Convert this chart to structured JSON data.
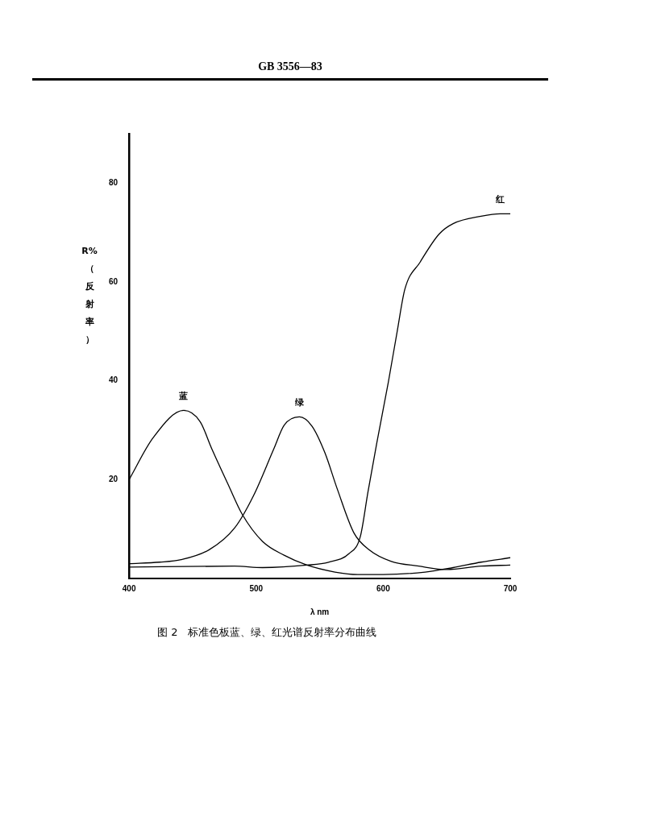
{
  "chart_data": {
    "type": "line",
    "title": "GB 3556—83",
    "xlabel": "λ nm",
    "ylabel": "R%（反射率）",
    "x": [
      400,
      419,
      443,
      456,
      465,
      478,
      489,
      505,
      522,
      540,
      562,
      580,
      600,
      633,
      655,
      677,
      700
    ],
    "series": [
      {
        "name": "蓝",
        "color": "#000000",
        "values": [
          20,
          28.5,
          34,
          31.7,
          26.3,
          19,
          13,
          7.5,
          4.7,
          2.7,
          1.3,
          0.8,
          0.8,
          1.3,
          2.2,
          3.3,
          4.2
        ]
      },
      {
        "name": "绿",
        "color": "#000000",
        "x": [
          400,
          424,
          441,
          463,
          483,
          498,
          514,
          522,
          534,
          544,
          554,
          564,
          577,
          589,
          606,
          628,
          650,
          677,
          700
        ],
        "values": [
          3,
          3.3,
          3.8,
          5.8,
          10.2,
          16.8,
          26.3,
          31,
          32.7,
          30.8,
          25.5,
          18,
          9.2,
          5.8,
          3.5,
          2.5,
          1.8,
          2.5,
          2.7
        ]
      },
      {
        "name": "红",
        "color": "#000000",
        "x": [
          400,
          483,
          505,
          540,
          557,
          573,
          582,
          588,
          595,
          604,
          611,
          617,
          629,
          644,
          655,
          677,
          692,
          700
        ],
        "values": [
          2.3,
          2.5,
          2.2,
          2.7,
          3.3,
          5,
          8.5,
          17.5,
          27.5,
          39.7,
          50,
          58.5,
          64,
          69.7,
          71.8,
          73.3,
          73.8,
          73.8
        ]
      }
    ],
    "xlim": [
      400,
      700
    ],
    "xticks": [
      400,
      500,
      600,
      700
    ],
    "ylim": [
      0,
      90
    ],
    "yticks": [
      20,
      40,
      60,
      80
    ],
    "grid": false,
    "legend": false,
    "marker": "none",
    "line_style": "solid",
    "annotations": [
      "图 2　标准色板蓝、绿、红光谱反射率分布曲线"
    ]
  }
}
